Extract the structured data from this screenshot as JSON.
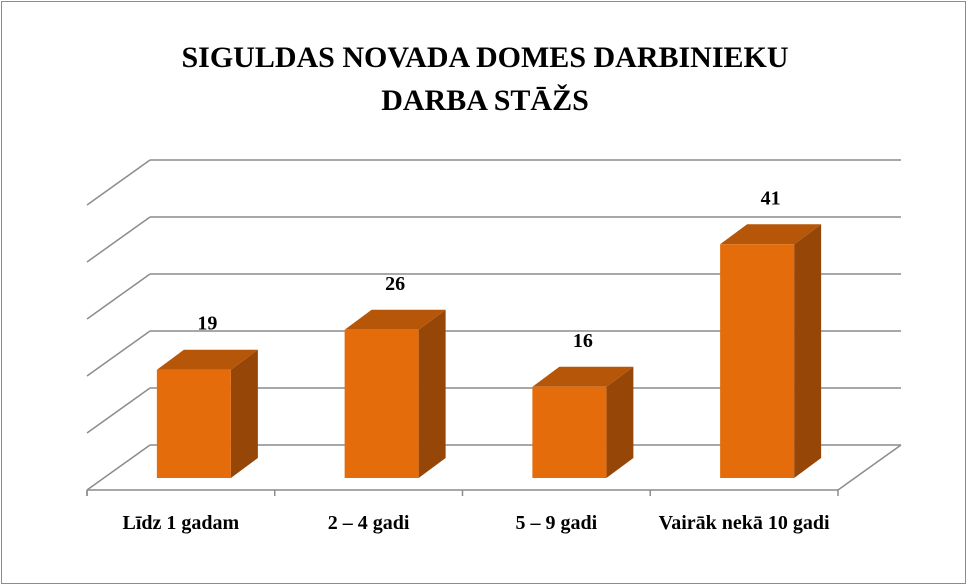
{
  "chart_data": {
    "type": "bar3d",
    "title": "SIGULDAS NOVADA DOMES DARBINIEKU DARBA STĀŽS",
    "categories": [
      "Līdz 1 gadam",
      "2 – 4 gadi",
      "5 – 9 gadi",
      "Vairāk nekā 10 gadi"
    ],
    "values": [
      19,
      26,
      16,
      41
    ],
    "color": "#e46c0a",
    "ylim": [
      0,
      50
    ],
    "yticks": [
      0,
      10,
      20,
      30,
      40,
      50
    ],
    "grid": true
  }
}
